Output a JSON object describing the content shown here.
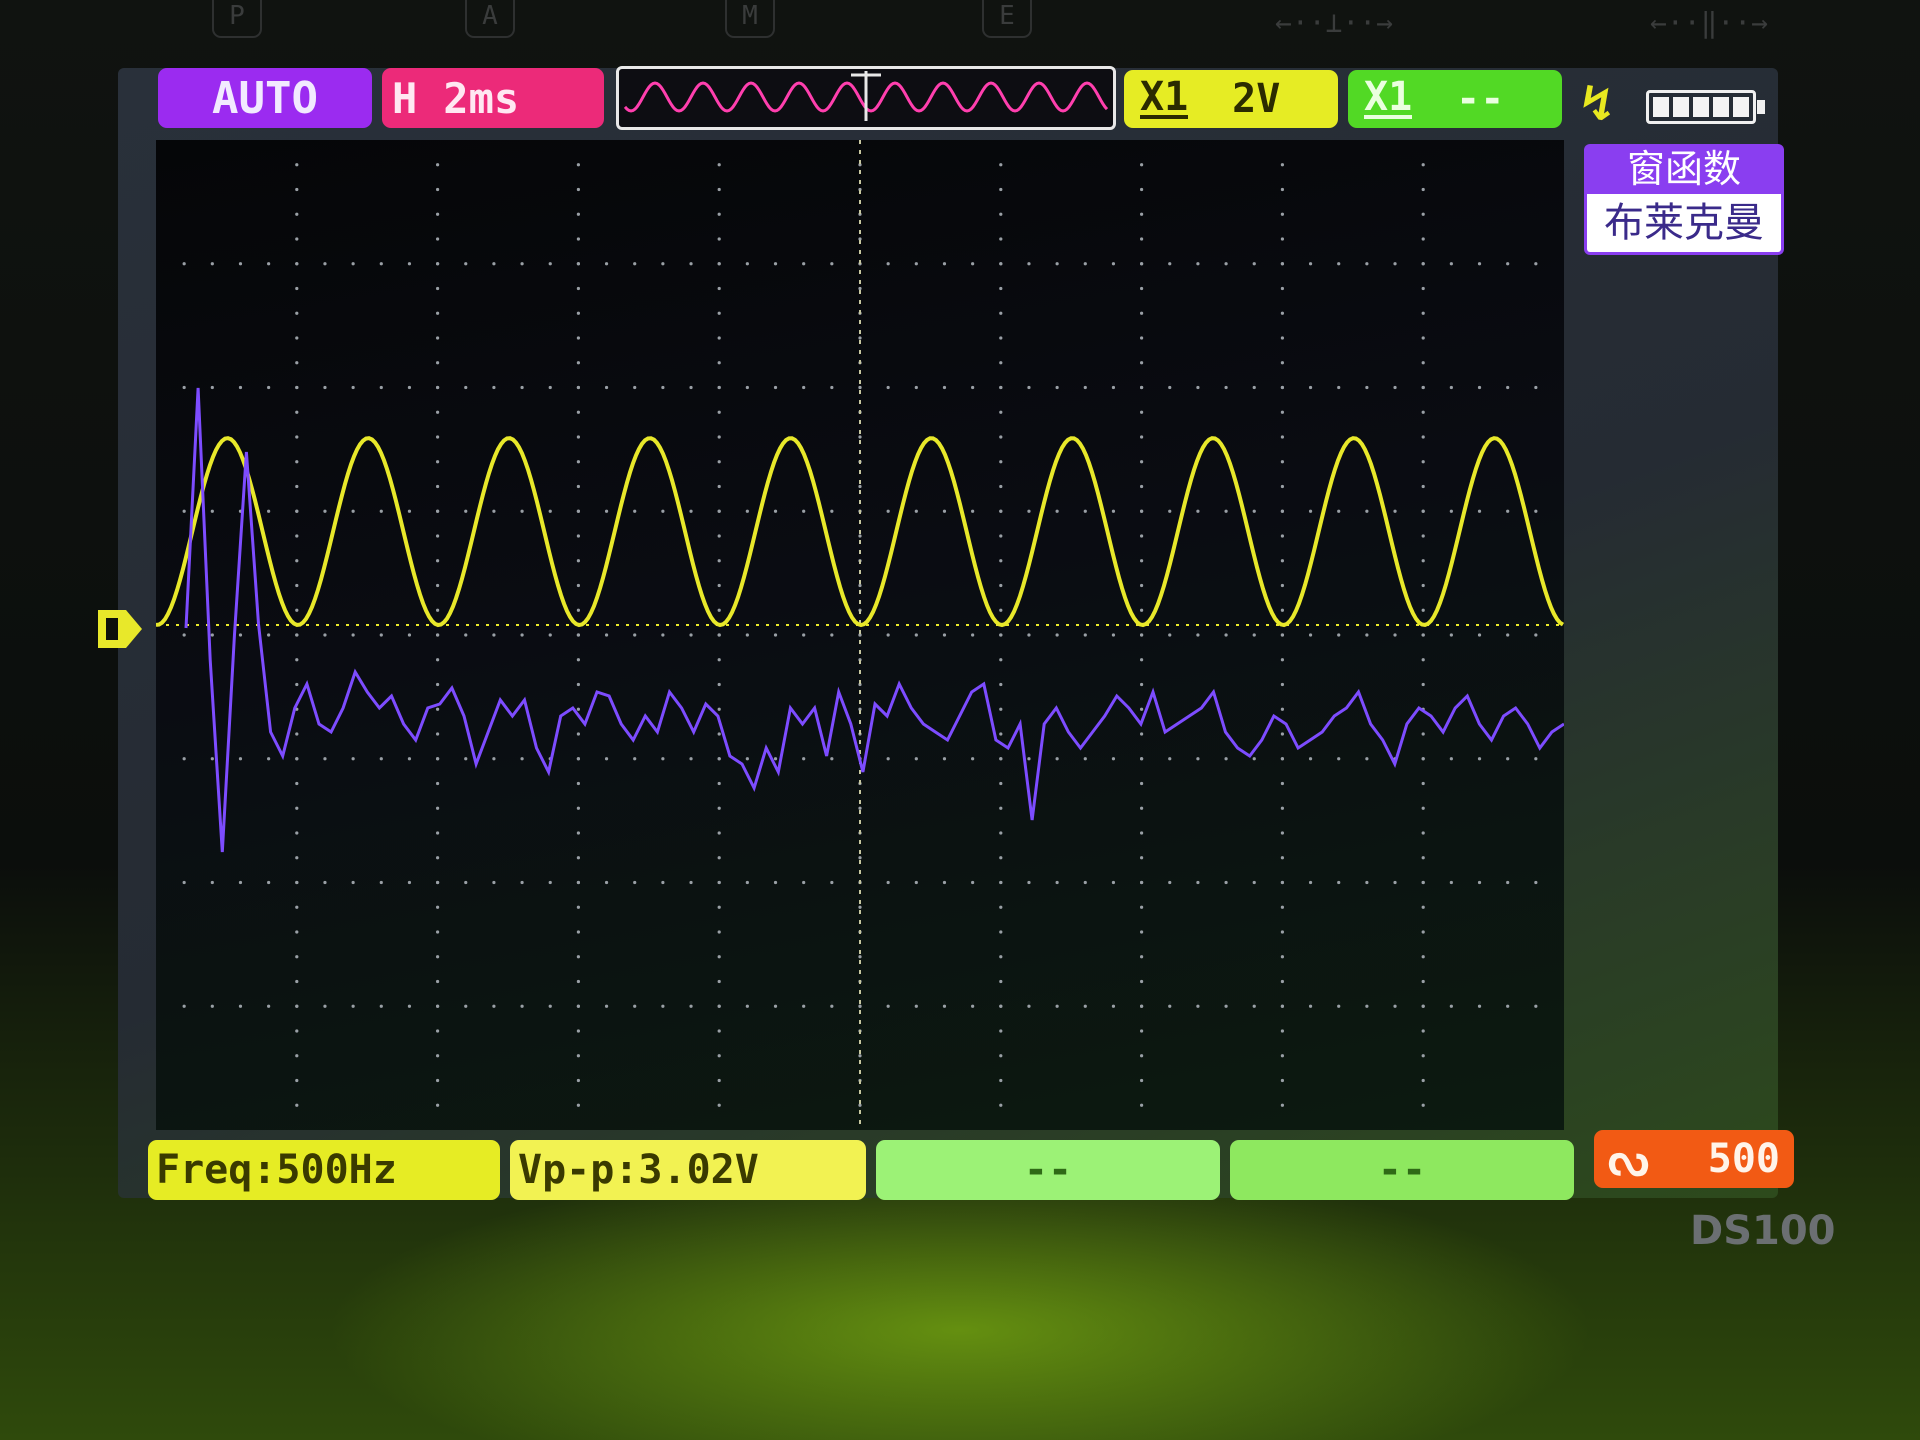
{
  "hardware_keys": [
    "P",
    "A",
    "M",
    "E"
  ],
  "hardware_symbols": [
    "←··⊥··→",
    "←··‖··→"
  ],
  "status_bar": {
    "trigger_mode": "AUTO",
    "timebase_prefix": "H",
    "timebase_value": "2ms",
    "ch1_label": "X1",
    "ch1_scale": "2V",
    "ch2_label": "X1",
    "ch2_scale": "--",
    "trigger_edge_glyph": "↯",
    "battery_level_bars": 5
  },
  "window_menu": {
    "title": "窗函数",
    "value": "布莱克曼"
  },
  "measurements": {
    "freq": "Freq:500Hz",
    "vpp": "Vp-p:3.02V",
    "slot3": "--",
    "slot4": "--"
  },
  "fft_button": {
    "glyph": "ᔓ",
    "value": "500"
  },
  "model": "DS100",
  "colors": {
    "ch1_trace": "#e8e82a",
    "fft_trace": "#7d4cff",
    "grid_dots": "#9aa0a6",
    "mode_chip": "#9b2bf0",
    "timebase_chip": "#ec2a79",
    "fft_chip": "#f25a14"
  },
  "chart_data": {
    "type": "line",
    "x_divisions": 10,
    "y_divisions": 8,
    "series": [
      {
        "channel": "CH1",
        "waveform": "sine",
        "frequency_hz": 500,
        "peak_to_peak_v": 3.02,
        "volts_per_div": 2,
        "time_per_div_ms": 2
      },
      {
        "channel": "FFT",
        "window": "布莱克曼",
        "points": [
          0.9,
          3.9,
          0.5,
          -1.9,
          0.8,
          3.1,
          0.95,
          -0.4,
          -0.7,
          -0.1,
          0.2,
          -0.3,
          -0.4,
          -0.1,
          0.35,
          0.1,
          -0.1,
          0.05,
          -0.3,
          -0.5,
          -0.1,
          -0.05,
          0.15,
          -0.2,
          -0.8,
          -0.4,
          0.0,
          -0.2,
          0.0,
          -0.6,
          -0.9,
          -0.2,
          -0.1,
          -0.3,
          0.1,
          0.05,
          -0.3,
          -0.5,
          -0.2,
          -0.4,
          0.1,
          -0.1,
          -0.4,
          -0.05,
          -0.2,
          -0.7,
          -0.8,
          -1.1,
          -0.6,
          -0.9,
          -0.1,
          -0.3,
          -0.1,
          -0.7,
          0.1,
          -0.3,
          -0.9,
          -0.05,
          -0.2,
          0.2,
          -0.1,
          -0.3,
          -0.4,
          -0.5,
          -0.2,
          0.1,
          0.2,
          -0.5,
          -0.6,
          -0.3,
          -1.5,
          -0.3,
          -0.1,
          -0.4,
          -0.6,
          -0.4,
          -0.2,
          0.05,
          -0.1,
          -0.3,
          0.1,
          -0.4,
          -0.3,
          -0.2,
          -0.1,
          0.1,
          -0.4,
          -0.6,
          -0.7,
          -0.5,
          -0.2,
          -0.3,
          -0.6,
          -0.5,
          -0.4,
          -0.2,
          -0.1,
          0.1,
          -0.3,
          -0.5,
          -0.8,
          -0.3,
          -0.1,
          -0.2,
          -0.4,
          -0.1,
          0.05,
          -0.3,
          -0.5,
          -0.2,
          -0.1,
          -0.3,
          -0.6,
          -0.4,
          -0.3
        ]
      }
    ]
  }
}
